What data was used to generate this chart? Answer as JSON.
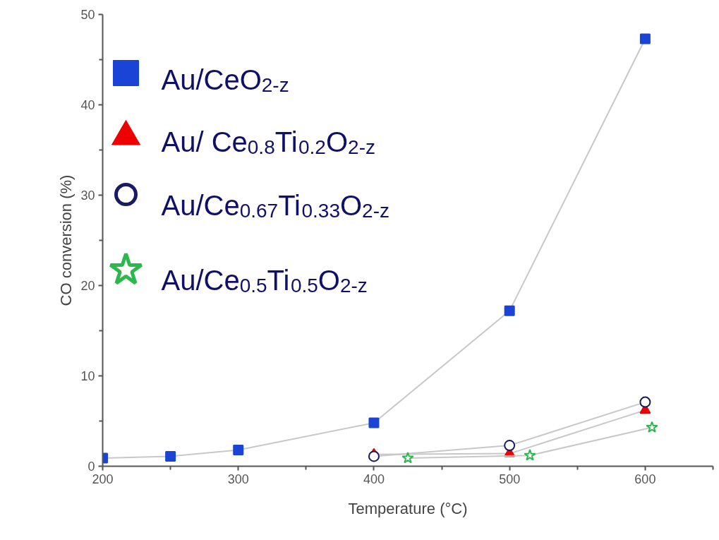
{
  "chart_data": {
    "type": "line",
    "xlabel": "Temperature (°C)",
    "ylabel": "CO conversion (%)",
    "xlim": [
      200,
      650
    ],
    "ylim": [
      0,
      50
    ],
    "xticks": [
      200,
      300,
      400,
      500,
      600
    ],
    "yticks": [
      0,
      10,
      20,
      30,
      40,
      50
    ],
    "grid": false,
    "legend": "top left",
    "line_style": "solid",
    "series": [
      {
        "name": "Au/CeO$_{2-z}$",
        "color": "#1a44d6",
        "marker": "square",
        "x": [
          200,
          250,
          300,
          400,
          500,
          600
        ],
        "values": [
          0.9,
          1.1,
          1.8,
          4.8,
          17.2,
          47.3
        ]
      },
      {
        "name": "Au/ Ce$_{0.8}$Ti$_{0.2}$O$_{2-z}$",
        "color": "#ee0000",
        "marker": "triangle",
        "x": [
          400,
          500,
          600
        ],
        "values": [
          1.3,
          1.4,
          6.2
        ]
      },
      {
        "name": "Au/Ce$_{0.67}$Ti$_{0.33}$O$_{2-z}$",
        "color": "#1a1a66",
        "marker": "circle",
        "x": [
          400,
          500,
          600
        ],
        "values": [
          1.1,
          2.3,
          7.1
        ]
      },
      {
        "name": "Au/Ce$_{0.5}$Ti$_{0.5}$O$_{2-z}$",
        "color": "#2db84d",
        "marker": "star",
        "x": [
          425,
          515,
          605
        ],
        "values": [
          0.9,
          1.2,
          4.3
        ]
      }
    ]
  }
}
